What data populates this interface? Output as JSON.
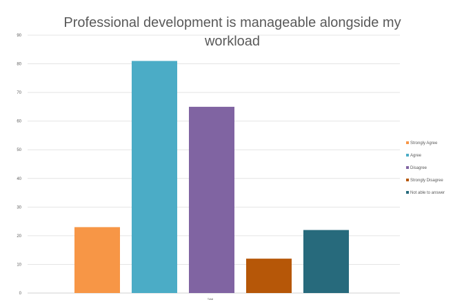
{
  "chart_data": {
    "type": "bar",
    "title_lines": [
      "Professional development is manageable alongside my",
      "workload"
    ],
    "category_label": "Total",
    "series": [
      {
        "name": "Strongly Agree",
        "value": 23,
        "color": "#F79646"
      },
      {
        "name": "Agree",
        "value": 81,
        "color": "#4BACC6"
      },
      {
        "name": "Disagree",
        "value": 65,
        "color": "#8064A2"
      },
      {
        "name": "Strongly Disagree",
        "value": 12,
        "color": "#B65708"
      },
      {
        "name": "Not able to answer",
        "value": 22,
        "color": "#276A7C"
      }
    ],
    "yticks": [
      0,
      10,
      20,
      30,
      40,
      50,
      60,
      70,
      80,
      90
    ],
    "ylim": [
      0,
      90
    ],
    "grid": true,
    "legend_position": "right"
  }
}
